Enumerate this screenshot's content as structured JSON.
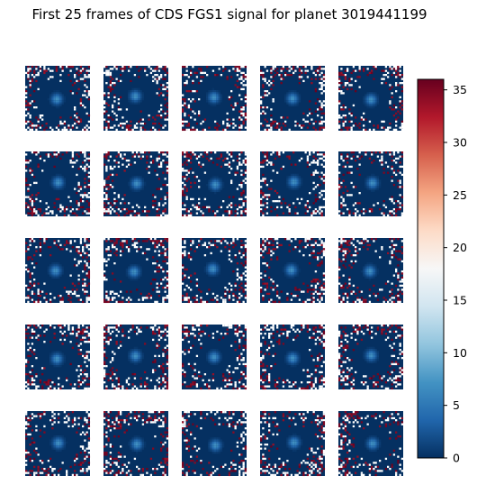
{
  "title": "First 25 frames of CDS FGS1 signal for planet 3019441199",
  "chart_data": {
    "type": "heatmap",
    "title": "First 25 frames of CDS FGS1 signal for planet 3019441199",
    "frames": 25,
    "grid": {
      "rows": 5,
      "cols": 5
    },
    "pixels_per_frame": [
      32,
      32
    ],
    "colormap": "RdBu_r",
    "colorbar": {
      "vmin": 0,
      "vmax": 36,
      "ticks": [
        0,
        5,
        10,
        15,
        20,
        25,
        30,
        35
      ]
    },
    "axes_visible": false,
    "background_level": 0,
    "star_peak_level": 7
  },
  "colors": {
    "low": "#053061",
    "mid": "#f7f7f7",
    "high": "#67001f"
  }
}
